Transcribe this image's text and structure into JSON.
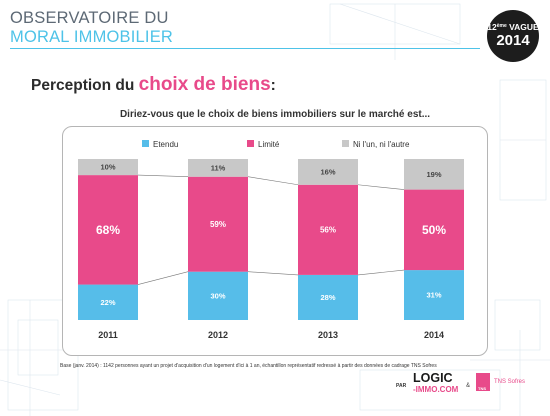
{
  "header": {
    "title": "OBSERVATOIRE DU",
    "subtitle": "MORAL IMMOBILIER"
  },
  "badge": {
    "wave_number": "12",
    "wave_suffix": "ème",
    "wave_label": "VAGUE",
    "year": "2014"
  },
  "perception": {
    "prefix": "Perception du ",
    "highlight": "choix de biens",
    "suffix": ":"
  },
  "footnote": "Base (janv. 2014) : 1142 personnes ayant un projet d'acquisition d'un logement d'ici à 1 an, échantillon représentatif redressé à partir des données de cadrage TNS Sofres",
  "logos": {
    "par": "PAR",
    "logic": "LOGIC",
    "immo": "-IMMO.COM",
    "amp": "&",
    "tns_box": "TNS",
    "tns": "TNS Sofres"
  },
  "colors": {
    "etendu": "#56bde9",
    "limite": "#e84a8a",
    "ni": "#c8c8c8",
    "accent": "#4ec3e8",
    "pink": "#e84a8a"
  },
  "chart_data": {
    "type": "bar",
    "stacked": true,
    "percent": true,
    "title": "Diriez-vous que le choix de biens immobiliers sur le marché est...",
    "categories": [
      "2011",
      "2012",
      "2013",
      "2014"
    ],
    "series": [
      {
        "name": "Etendu",
        "values": [
          22,
          30,
          28,
          31
        ],
        "labels": [
          "22%",
          "30%",
          "28%",
          "31%"
        ],
        "color": "#56bde9"
      },
      {
        "name": "Limité",
        "values": [
          68,
          59,
          56,
          50
        ],
        "labels": [
          "68%",
          "59%",
          "56%",
          "50%"
        ],
        "color": "#e84a8a"
      },
      {
        "name": "Ni l'un, ni l'autre",
        "values": [
          10,
          11,
          16,
          19
        ],
        "labels": [
          "10%",
          "11%",
          "16%",
          "19%"
        ],
        "color": "#c8c8c8"
      }
    ],
    "legend_position": "top",
    "ylim": [
      0,
      100
    ],
    "grid": false
  }
}
